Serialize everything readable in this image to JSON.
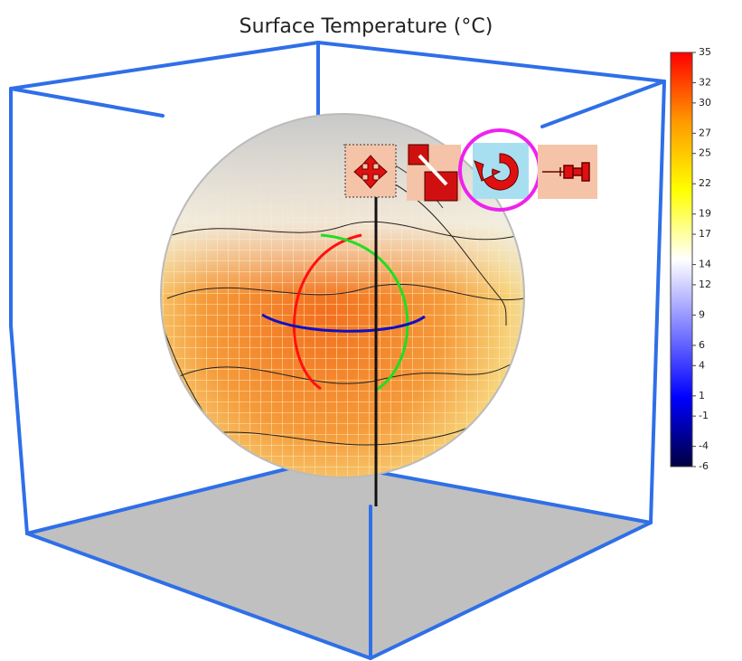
{
  "chart_data": {
    "type": "globe-surface",
    "title": "Surface Temperature (°C)",
    "clim": [
      -6,
      35
    ],
    "colorbar_ticks": [
      35,
      32,
      30,
      27,
      25,
      22,
      19,
      17,
      14,
      12,
      9,
      6,
      4,
      1,
      -1,
      -4,
      -6
    ],
    "colormap": [
      "#000040",
      "#0000ff",
      "#8080ff",
      "#ffffff",
      "#ffff00",
      "#ff9900",
      "#ff0000"
    ]
  }
}
